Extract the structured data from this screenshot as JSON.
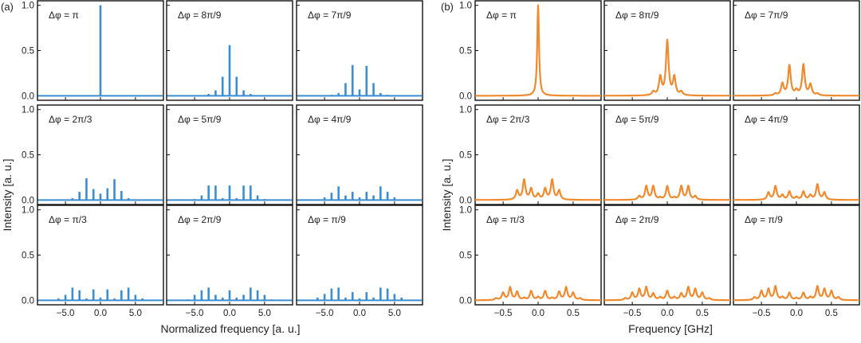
{
  "colors": {
    "left": "#3a8ed0",
    "right": "#ef8a2e",
    "frame": "#111111"
  },
  "figures": [
    {
      "panel_label": "(a)",
      "xlabel": "Normalized frequency [a. u.]",
      "ylabel": "Intensity [a. u.]"
    },
    {
      "panel_label": "(b)",
      "xlabel": "Frequency [GHz]",
      "ylabel": "Intensity [a. u.]"
    }
  ],
  "chart_data": [
    {
      "type": "bar",
      "figure": "(a)",
      "xlabel": "Normalized frequency [a. u.]",
      "ylabel": "Intensity [a. u.]",
      "xlim": [
        -9,
        9
      ],
      "ylim": [
        -0.05,
        1.05
      ],
      "xticks": [
        "-5.0",
        "0.0",
        "5.0"
      ],
      "xtick_values": [
        -5,
        0,
        5
      ],
      "yticks": [
        "0.0",
        "0.5",
        "1.0"
      ],
      "ytick_values": [
        0,
        0.5,
        1.0
      ],
      "panels": [
        {
          "label": "Δφ = π",
          "x": [
            0
          ],
          "values": [
            1.0
          ]
        },
        {
          "label": "Δφ = 8π/9",
          "x": [
            -3,
            -2,
            -1,
            0,
            1,
            2,
            3
          ],
          "values": [
            0.02,
            0.06,
            0.21,
            0.56,
            0.21,
            0.06,
            0.02
          ]
        },
        {
          "label": "Δφ = 7π/9",
          "x": [
            -4,
            -3,
            -2,
            -1,
            0,
            1,
            2,
            3,
            4
          ],
          "values": [
            0.01,
            0.03,
            0.14,
            0.34,
            0.07,
            0.33,
            0.14,
            0.03,
            0.01
          ]
        },
        {
          "label": "Δφ = 2π/3",
          "x": [
            -4,
            -3,
            -2,
            -1,
            0,
            1,
            2,
            3,
            4
          ],
          "values": [
            0.02,
            0.09,
            0.24,
            0.12,
            0.07,
            0.13,
            0.23,
            0.1,
            0.02
          ]
        },
        {
          "label": "Δφ = 5π/9",
          "x": [
            -5,
            -4,
            -3,
            -2,
            -1,
            0,
            1,
            2,
            3,
            4,
            5
          ],
          "values": [
            0.01,
            0.05,
            0.16,
            0.16,
            0.02,
            0.16,
            0.02,
            0.16,
            0.16,
            0.05,
            0.01
          ]
        },
        {
          "label": "Δφ = 4π/9",
          "x": [
            -5,
            -4,
            -3,
            -2,
            -1,
            0,
            1,
            2,
            3,
            4,
            5
          ],
          "values": [
            0.03,
            0.08,
            0.15,
            0.05,
            0.09,
            0.03,
            0.09,
            0.05,
            0.15,
            0.09,
            0.03
          ]
        },
        {
          "label": "Δφ = π/3",
          "x": [
            -6,
            -5,
            -4,
            -3,
            -2,
            -1,
            0,
            1,
            2,
            3,
            4,
            5,
            6
          ],
          "values": [
            0.02,
            0.06,
            0.14,
            0.11,
            0.02,
            0.12,
            0.03,
            0.12,
            0.02,
            0.11,
            0.14,
            0.06,
            0.02
          ]
        },
        {
          "label": "Δφ = 2π/9",
          "x": [
            -6,
            -5,
            -4,
            -3,
            -2,
            -1,
            0,
            1,
            2,
            3,
            4,
            5,
            6
          ],
          "values": [
            0.01,
            0.06,
            0.11,
            0.14,
            0.06,
            0.03,
            0.11,
            0.03,
            0.06,
            0.14,
            0.11,
            0.06,
            0.01
          ]
        },
        {
          "label": "Δφ = π/9",
          "x": [
            -6,
            -5,
            -4,
            -3,
            -2,
            -1,
            0,
            1,
            2,
            3,
            4,
            5,
            6
          ],
          "values": [
            0.03,
            0.07,
            0.13,
            0.14,
            0.03,
            0.09,
            0.02,
            0.09,
            0.03,
            0.14,
            0.13,
            0.07,
            0.03
          ]
        }
      ]
    },
    {
      "type": "line",
      "figure": "(b)",
      "xlabel": "Frequency [GHz]",
      "ylabel": "Intensity [a. u.]",
      "xlim": [
        -0.9,
        0.9
      ],
      "ylim": [
        -0.05,
        1.05
      ],
      "xticks": [
        "-0.5",
        "0.0",
        "0.5"
      ],
      "xtick_values": [
        -0.5,
        0,
        0.5
      ],
      "yticks": [
        "0.0",
        "0.5",
        "1.0"
      ],
      "ytick_values": [
        0,
        0.5,
        1.0
      ],
      "peak_spacing_ghz": 0.1,
      "panels": [
        {
          "label": "Δφ = π",
          "x": [
            0
          ],
          "values": [
            1.0
          ]
        },
        {
          "label": "Δφ = 8π/9",
          "x": [
            -0.2,
            -0.1,
            0,
            0.1,
            0.2
          ],
          "values": [
            0.04,
            0.2,
            0.6,
            0.2,
            0.04
          ]
        },
        {
          "label": "Δφ = 7π/9",
          "x": [
            -0.3,
            -0.2,
            -0.1,
            0,
            0.1,
            0.2,
            0.3
          ],
          "values": [
            0.02,
            0.13,
            0.33,
            0.05,
            0.34,
            0.12,
            0.02
          ]
        },
        {
          "label": "Δφ = 2π/3",
          "x": [
            -0.3,
            -0.2,
            -0.1,
            0,
            0.1,
            0.2,
            0.3
          ],
          "values": [
            0.1,
            0.22,
            0.12,
            0.06,
            0.12,
            0.22,
            0.1
          ]
        },
        {
          "label": "Δφ = 5π/9",
          "x": [
            -0.4,
            -0.3,
            -0.2,
            -0.1,
            0,
            0.1,
            0.2,
            0.3,
            0.4
          ],
          "values": [
            0.04,
            0.15,
            0.15,
            0.02,
            0.15,
            0.02,
            0.15,
            0.15,
            0.04
          ]
        },
        {
          "label": "Δφ = 4π/9",
          "x": [
            -0.4,
            -0.3,
            -0.2,
            -0.1,
            0,
            0.1,
            0.2,
            0.3,
            0.4
          ],
          "values": [
            0.08,
            0.15,
            0.05,
            0.09,
            0.03,
            0.09,
            0.05,
            0.17,
            0.08
          ]
        },
        {
          "label": "Δφ = π/3",
          "x": [
            -0.6,
            -0.5,
            -0.4,
            -0.3,
            -0.2,
            -0.1,
            0,
            0.1,
            0.2,
            0.3,
            0.4,
            0.5,
            0.6
          ],
          "values": [
            0.02,
            0.08,
            0.14,
            0.09,
            0.02,
            0.1,
            0.03,
            0.1,
            0.02,
            0.09,
            0.14,
            0.08,
            0.02
          ]
        },
        {
          "label": "Δφ = 2π/9",
          "x": [
            -0.6,
            -0.5,
            -0.4,
            -0.3,
            -0.2,
            -0.1,
            0,
            0.1,
            0.2,
            0.3,
            0.4,
            0.5,
            0.6
          ],
          "values": [
            0.02,
            0.08,
            0.12,
            0.14,
            0.07,
            0.03,
            0.1,
            0.03,
            0.07,
            0.14,
            0.12,
            0.08,
            0.02
          ]
        },
        {
          "label": "Δφ = π/9",
          "x": [
            -0.6,
            -0.5,
            -0.4,
            -0.3,
            -0.2,
            -0.1,
            0,
            0.1,
            0.2,
            0.3,
            0.4,
            0.5,
            0.6
          ],
          "values": [
            0.03,
            0.1,
            0.12,
            0.15,
            0.03,
            0.08,
            0.02,
            0.08,
            0.03,
            0.15,
            0.12,
            0.1,
            0.03
          ]
        }
      ]
    }
  ]
}
